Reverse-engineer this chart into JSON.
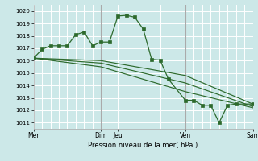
{
  "bg_color": "#cce8e8",
  "grid_color": "#ffffff",
  "line_color": "#2d6a2d",
  "marker_color": "#2d6a2d",
  "xlabel": "Pression niveau de la mer( hPa )",
  "ylim": [
    1010.5,
    1020.5
  ],
  "yticks": [
    1011,
    1012,
    1013,
    1014,
    1015,
    1016,
    1017,
    1018,
    1019,
    1020
  ],
  "xlabels_pos": [
    0,
    48,
    60,
    108,
    156
  ],
  "xlabels": [
    "Mer",
    "Dim",
    "Jeu",
    "Ven",
    "Sam"
  ],
  "vlines_dark": [
    48,
    108
  ],
  "series": [
    [
      0,
      1016.2
    ],
    [
      6,
      1016.9
    ],
    [
      12,
      1017.2
    ],
    [
      18,
      1017.2
    ],
    [
      24,
      1017.2
    ],
    [
      30,
      1018.1
    ],
    [
      36,
      1018.3
    ],
    [
      42,
      1017.2
    ],
    [
      48,
      1017.5
    ],
    [
      54,
      1017.5
    ],
    [
      60,
      1019.6
    ],
    [
      66,
      1019.65
    ],
    [
      72,
      1019.5
    ],
    [
      78,
      1018.55
    ],
    [
      84,
      1016.1
    ],
    [
      90,
      1016.05
    ],
    [
      96,
      1014.5
    ],
    [
      108,
      1012.8
    ],
    [
      114,
      1012.8
    ],
    [
      120,
      1012.4
    ],
    [
      126,
      1012.4
    ],
    [
      132,
      1011.0
    ],
    [
      138,
      1012.4
    ],
    [
      144,
      1012.5
    ],
    [
      156,
      1012.5
    ]
  ],
  "series2": [
    [
      0,
      1016.2
    ],
    [
      48,
      1016.0
    ],
    [
      108,
      1014.8
    ],
    [
      156,
      1012.5
    ]
  ],
  "series3": [
    [
      0,
      1016.2
    ],
    [
      48,
      1015.8
    ],
    [
      108,
      1014.2
    ],
    [
      156,
      1012.3
    ]
  ],
  "series4": [
    [
      0,
      1016.2
    ],
    [
      48,
      1015.5
    ],
    [
      108,
      1013.5
    ],
    [
      156,
      1012.2
    ]
  ]
}
